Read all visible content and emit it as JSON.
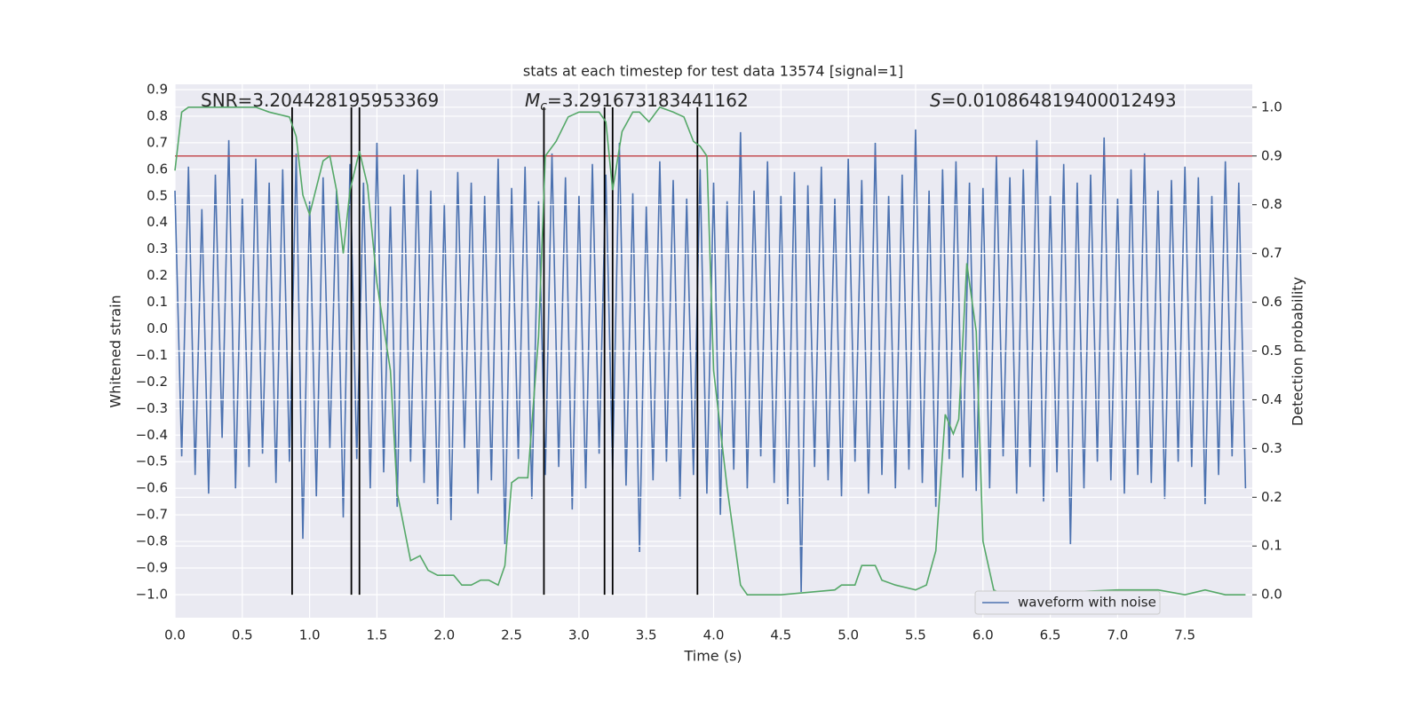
{
  "chart_data": {
    "type": "line",
    "title": "stats at each timestep for test data 13574 [signal=1]",
    "xlabel": "Time (s)",
    "ylabel": "Whitened strain",
    "y2label": "Detection probability",
    "annotations": [
      {
        "text": "SNR=3.204428195953369"
      },
      {
        "symbol": "M",
        "sub": "c",
        "text": "=3.291673183441162"
      },
      {
        "symbol": "S",
        "text": "=0.010864819400012493"
      }
    ],
    "xlim": [
      0,
      8
    ],
    "xticks": [
      {
        "value": 0,
        "label": "0.0"
      },
      0.5,
      {
        "value": 1,
        "label": "1.0"
      },
      1.5,
      {
        "value": 2,
        "label": "2.0"
      },
      2.5,
      {
        "value": 3,
        "label": "3.0"
      },
      3.5,
      {
        "value": 4,
        "label": "4.0"
      },
      4.5,
      {
        "value": 5,
        "label": "5.0"
      },
      5.5,
      {
        "value": 6,
        "label": "6.0"
      },
      6.5,
      {
        "value": 7,
        "label": "7.0"
      },
      7.5
    ],
    "ylim": [
      -1.087,
      0.92
    ],
    "yticks": [
      0.9,
      0.8,
      0.7,
      0.6,
      0.5,
      0.4,
      0.3,
      0.2,
      0.1,
      {
        "value": 0,
        "label": "0.0"
      },
      {
        "value": -0.1,
        "label": "−0.1"
      },
      {
        "value": -0.2,
        "label": "−0.2"
      },
      {
        "value": -0.3,
        "label": "−0.3"
      },
      {
        "value": -0.4,
        "label": "−0.4"
      },
      {
        "value": -0.5,
        "label": "−0.5"
      },
      {
        "value": -0.6,
        "label": "−0.6"
      },
      {
        "value": -0.7,
        "label": "−0.7"
      },
      {
        "value": -0.8,
        "label": "−0.8"
      },
      {
        "value": -0.9,
        "label": "−0.9"
      },
      {
        "value": -1,
        "label": "−1.0"
      }
    ],
    "y2lim": [
      -0.047,
      1.047
    ],
    "y2ticks": [
      {
        "value": 0,
        "label": "0.0"
      },
      0.1,
      0.2,
      0.3,
      0.4,
      0.5,
      0.6,
      0.7,
      0.8,
      0.9,
      {
        "value": 1,
        "label": "1.0"
      }
    ],
    "grid": true,
    "legend": "lower right",
    "threshold": {
      "value": 0.9,
      "axis": "y2",
      "color": "#c44e52"
    },
    "vlines": {
      "x": [
        0.87,
        1.31,
        1.37,
        2.74,
        3.19,
        3.25,
        3.88
      ],
      "color": "#000000"
    },
    "series": [
      {
        "name": "waveform with noise",
        "color": "#4c72b0",
        "x": [
          0,
          0.05,
          0.1,
          0.15,
          0.2,
          0.25,
          0.3,
          0.35,
          0.4,
          0.45,
          0.5,
          0.55,
          0.6,
          0.65,
          0.7,
          0.75,
          0.8,
          0.85,
          0.9,
          0.95,
          1,
          1.05,
          1.1,
          1.15,
          1.2,
          1.25,
          1.3,
          1.35,
          1.4,
          1.45,
          1.5,
          1.55,
          1.6,
          1.65,
          1.7,
          1.75,
          1.8,
          1.85,
          1.9,
          1.95,
          2,
          2.05,
          2.1,
          2.15,
          2.2,
          2.25,
          2.3,
          2.35,
          2.4,
          2.45,
          2.5,
          2.55,
          2.6,
          2.65,
          2.7,
          2.75,
          2.8,
          2.85,
          2.9,
          2.95,
          3,
          3.05,
          3.1,
          3.15,
          3.2,
          3.25,
          3.3,
          3.35,
          3.4,
          3.45,
          3.5,
          3.55,
          3.6,
          3.65,
          3.7,
          3.75,
          3.8,
          3.85,
          3.9,
          3.95,
          4,
          4.05,
          4.1,
          4.15,
          4.2,
          4.25,
          4.3,
          4.35,
          4.4,
          4.45,
          4.5,
          4.55,
          4.6,
          4.65,
          4.7,
          4.75,
          4.8,
          4.85,
          4.9,
          4.95,
          5,
          5.05,
          5.1,
          5.15,
          5.2,
          5.25,
          5.3,
          5.35,
          5.4,
          5.45,
          5.5,
          5.55,
          5.6,
          5.65,
          5.7,
          5.75,
          5.8,
          5.85,
          5.9,
          5.95,
          6,
          6.05,
          6.1,
          6.15,
          6.2,
          6.25,
          6.3,
          6.35,
          6.4,
          6.45,
          6.5,
          6.55,
          6.6,
          6.65,
          6.7,
          6.75,
          6.8,
          6.85,
          6.9,
          6.95,
          7,
          7.05,
          7.1,
          7.15,
          7.2,
          7.25,
          7.3,
          7.35,
          7.4,
          7.45,
          7.5,
          7.55,
          7.6,
          7.65,
          7.7,
          7.75,
          7.8,
          7.85,
          7.9,
          7.95
        ],
        "values": [
          0.52,
          -0.48,
          0.61,
          -0.55,
          0.45,
          -0.62,
          0.58,
          -0.41,
          0.71,
          -0.6,
          0.49,
          -0.52,
          0.64,
          -0.47,
          0.55,
          -0.58,
          0.6,
          -0.5,
          0.66,
          -0.79,
          0.48,
          -0.63,
          0.57,
          -0.45,
          0.52,
          -0.71,
          0.62,
          -0.49,
          0.55,
          -0.6,
          0.7,
          -0.54,
          0.46,
          -0.67,
          0.58,
          -0.5,
          0.6,
          -0.58,
          0.52,
          -0.66,
          0.47,
          -0.72,
          0.59,
          -0.45,
          0.55,
          -0.62,
          0.5,
          -0.57,
          0.64,
          -0.81,
          0.53,
          -0.49,
          0.61,
          -0.64,
          0.48,
          -0.55,
          0.66,
          -0.52,
          0.57,
          -0.68,
          0.5,
          -0.6,
          0.62,
          -0.47,
          0.58,
          -0.53,
          0.7,
          -0.59,
          0.51,
          -0.84,
          0.46,
          -0.57,
          0.63,
          -0.5,
          0.56,
          -0.64,
          0.49,
          -0.55,
          0.6,
          -0.62,
          0.55,
          -0.7,
          0.48,
          -0.53,
          0.74,
          -0.6,
          0.52,
          -0.48,
          0.63,
          -0.58,
          0.5,
          -0.66,
          0.59,
          -0.99,
          0.54,
          -0.52,
          0.61,
          -0.57,
          0.49,
          -0.63,
          0.64,
          -0.5,
          0.56,
          -0.62,
          0.7,
          -0.55,
          0.5,
          -0.6,
          0.58,
          -0.53,
          0.75,
          -0.58,
          0.52,
          -0.67,
          0.6,
          -0.49,
          0.63,
          -0.56,
          0.55,
          -0.61,
          0.53,
          -0.6,
          0.65,
          -0.48,
          0.57,
          -0.62,
          0.6,
          -0.52,
          0.71,
          -0.65,
          0.5,
          -0.54,
          0.62,
          -0.81,
          0.55,
          -0.6,
          0.58,
          -0.5,
          0.72,
          -0.57,
          0.49,
          -0.62,
          0.6,
          -0.55,
          0.66,
          -0.58,
          0.52,
          -0.64,
          0.56,
          -0.5,
          0.61,
          -0.52,
          0.57,
          -0.66,
          0.5,
          -0.55,
          0.63,
          -0.48,
          0.55,
          -0.6
        ]
      },
      {
        "color": "#55a868",
        "axis": "y2",
        "x": [
          0,
          0.05,
          0.1,
          0.6,
          0.7,
          0.85,
          0.9,
          0.95,
          1,
          1.1,
          1.15,
          1.2,
          1.25,
          1.3,
          1.37,
          1.43,
          1.5,
          1.6,
          1.65,
          1.75,
          1.82,
          1.88,
          1.95,
          2,
          2.07,
          2.13,
          2.2,
          2.27,
          2.33,
          2.4,
          2.45,
          2.5,
          2.55,
          2.62,
          2.7,
          2.75,
          2.83,
          2.92,
          3,
          3.15,
          3.2,
          3.25,
          3.32,
          3.4,
          3.45,
          3.52,
          3.6,
          3.7,
          3.78,
          3.85,
          3.9,
          3.95,
          4,
          4.1,
          4.2,
          4.25,
          4.5,
          4.9,
          4.95,
          5.05,
          5.1,
          5.2,
          5.25,
          5.35,
          5.5,
          5.58,
          5.65,
          5.72,
          5.78,
          5.82,
          5.88,
          5.95,
          6,
          6.08,
          6.15,
          7,
          7.05,
          7.15,
          7.3,
          7.5,
          7.65,
          7.8,
          7.95
        ],
        "values": [
          0.87,
          0.99,
          1,
          1,
          0.99,
          0.98,
          0.94,
          0.82,
          0.78,
          0.89,
          0.9,
          0.83,
          0.7,
          0.83,
          0.91,
          0.84,
          0.64,
          0.46,
          0.21,
          0.07,
          0.08,
          0.05,
          0.04,
          0.04,
          0.04,
          0.02,
          0.02,
          0.03,
          0.03,
          0.02,
          0.06,
          0.23,
          0.24,
          0.24,
          0.53,
          0.9,
          0.93,
          0.98,
          0.99,
          0.99,
          0.97,
          0.83,
          0.95,
          0.99,
          0.99,
          0.97,
          1,
          0.99,
          0.98,
          0.93,
          0.92,
          0.9,
          0.46,
          0.22,
          0.02,
          0,
          0,
          0.01,
          0.02,
          0.02,
          0.06,
          0.06,
          0.03,
          0.02,
          0.01,
          0.02,
          0.09,
          0.37,
          0.33,
          0.36,
          0.68,
          0.54,
          0.11,
          0.01,
          0,
          0.01,
          0.01,
          0.01,
          0.01,
          0,
          0.01,
          0,
          0
        ]
      }
    ]
  }
}
